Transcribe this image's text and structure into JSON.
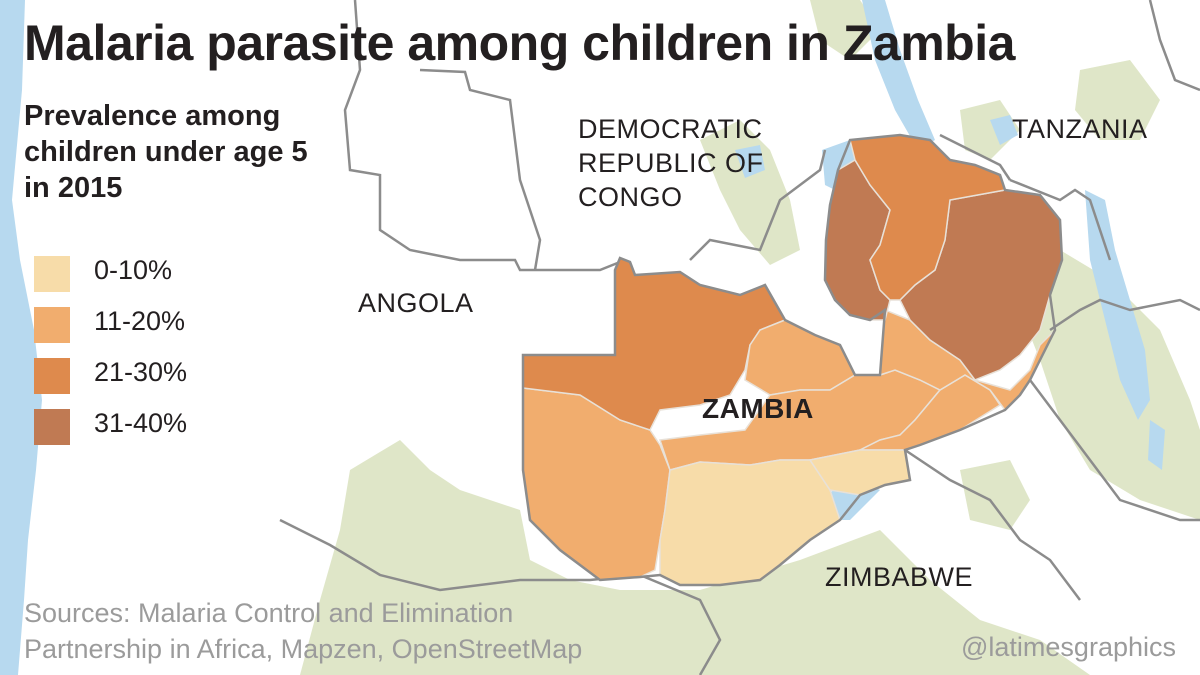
{
  "title": "Malaria parasite among children in Zambia",
  "subtitle_lines": [
    "Prevalence among",
    "children under age 5",
    "in 2015"
  ],
  "legend": [
    {
      "label": "0-10%",
      "color": "#f7dca9"
    },
    {
      "label": "11-20%",
      "color": "#f1ad6e"
    },
    {
      "label": "21-30%",
      "color": "#de8a4d"
    },
    {
      "label": "31-40%",
      "color": "#c07a53"
    }
  ],
  "places": {
    "drc_lines": [
      "DEMOCRATIC",
      "REPUBLIC OF",
      "CONGO"
    ],
    "tanzania": "TANZANIA",
    "angola": "ANGOLA",
    "zimbabwe": "ZIMBABWE",
    "zambia": "ZAMBIA"
  },
  "sources_lines": [
    "Sources: Malaria Control and Elimination",
    "Partnership in Africa, Mapzen, OpenStreetMap"
  ],
  "credit": "@latimesgraphics",
  "colors": {
    "water": "#b7d9ef",
    "land_green": "#dfe6c8",
    "border": "#8c8c8c"
  }
}
